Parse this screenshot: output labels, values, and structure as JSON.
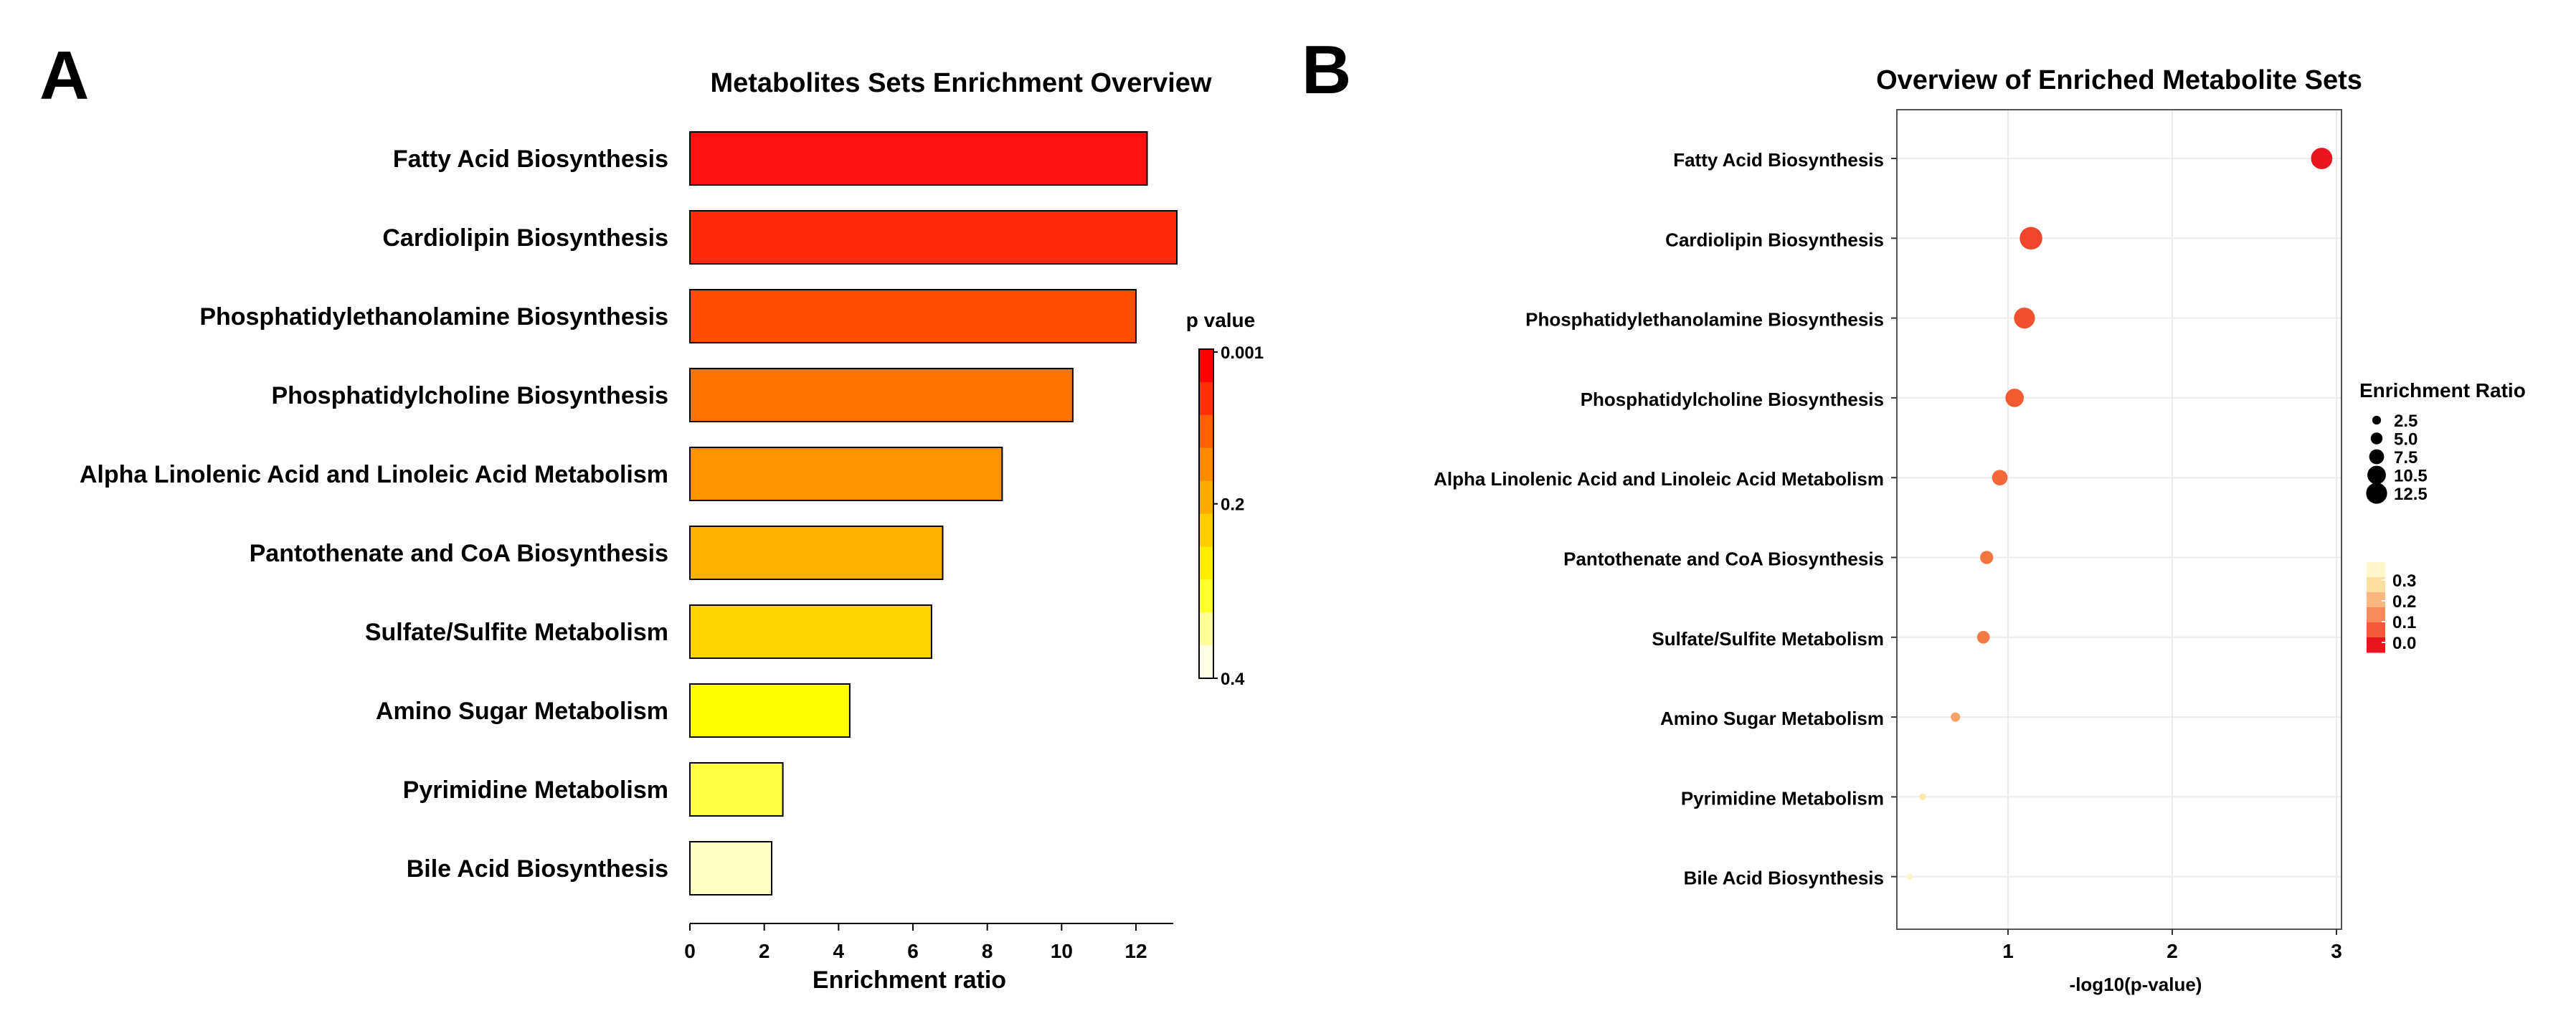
{
  "chart_data": [
    {
      "panel": "A",
      "type": "bar",
      "orientation": "horizontal",
      "title": "Metabolites Sets Enrichment Overview",
      "xlabel": "Enrichment ratio",
      "ylabel": "",
      "xlim": [
        0,
        13
      ],
      "xticks": [
        "0",
        "2",
        "4",
        "6",
        "8",
        "10",
        "12"
      ],
      "grid": false,
      "categories": [
        "Fatty Acid Biosynthesis",
        "Cardiolipin Biosynthesis",
        "Phosphatidylethanolamine Biosynthesis",
        "Phosphatidylcholine Biosynthesis",
        "Alpha Linolenic Acid and Linoleic Acid Metabolism",
        "Pantothenate and CoA Biosynthesis",
        "Sulfate/Sulfite Metabolism",
        "Amino Sugar Metabolism",
        "Pyrimidine Metabolism",
        "Bile Acid Biosynthesis"
      ],
      "values": [
        12.3,
        13.1,
        12.0,
        10.3,
        8.4,
        6.8,
        6.5,
        4.3,
        2.5,
        2.2
      ],
      "colors": [
        "#ff1010",
        "#ff2a08",
        "#ff4c00",
        "#ff7400",
        "#ff9400",
        "#ffb300",
        "#ffd500",
        "#ffff00",
        "#ffff44",
        "#ffffc4"
      ],
      "legend": {
        "title": "p value",
        "placement": "right",
        "ticks": [
          "0.001",
          "0.2",
          "0.4"
        ],
        "gradient": [
          "#ff0000",
          "#ff3000",
          "#ff6000",
          "#ff8a00",
          "#ffaa00",
          "#ffcc00",
          "#ffec00",
          "#ffff30",
          "#ffff9a",
          "#ffffe6"
        ]
      }
    },
    {
      "panel": "B",
      "type": "scatter",
      "title": "Overview of Enriched Metabolite Sets",
      "xlabel": "-log10(p-value)",
      "ylabel": "",
      "xlim": [
        0.35,
        3.05
      ],
      "xticks": [
        "1",
        "2",
        "3"
      ],
      "grid": true,
      "categories": [
        "Fatty Acid Biosynthesis",
        "Cardiolipin Biosynthesis",
        "Phosphatidylethanolamine Biosynthesis",
        "Phosphatidylcholine Biosynthesis",
        "Alpha Linolenic Acid and Linoleic Acid Metabolism",
        "Pantothenate and CoA Biosynthesis",
        "Sulfate/Sulfite Metabolism",
        "Amino Sugar Metabolism",
        "Pyrimidine Metabolism",
        "Bile Acid Biosynthesis"
      ],
      "x": [
        2.91,
        1.14,
        1.1,
        1.04,
        0.95,
        0.87,
        0.85,
        0.68,
        0.48,
        0.4
      ],
      "size": [
        12.3,
        13.1,
        12.0,
        10.3,
        8.4,
        6.8,
        6.5,
        4.3,
        2.5,
        2.2
      ],
      "colors": [
        "#e8141e",
        "#f0452c",
        "#f1512f",
        "#f25a32",
        "#f46738",
        "#f57540",
        "#f57944",
        "#f7a46a",
        "#fde6a8",
        "#fff3c8"
      ],
      "size_legend": {
        "title": "Enrichment Ratio",
        "placement": "right",
        "labels": [
          "2.5",
          "5.0",
          "7.5",
          "10.5",
          "12.5"
        ],
        "values": [
          2.5,
          5.0,
          7.5,
          10.5,
          12.5
        ]
      },
      "color_legend": {
        "placement": "right",
        "ticks": [
          "0.3",
          "0.2",
          "0.1",
          "0.0"
        ],
        "gradient": [
          "#fff6cc",
          "#fde0a0",
          "#fbb780",
          "#f88a5c",
          "#f25a3a",
          "#e8141e"
        ]
      }
    }
  ],
  "labels": {
    "panel_a": "A",
    "panel_b": "B"
  }
}
